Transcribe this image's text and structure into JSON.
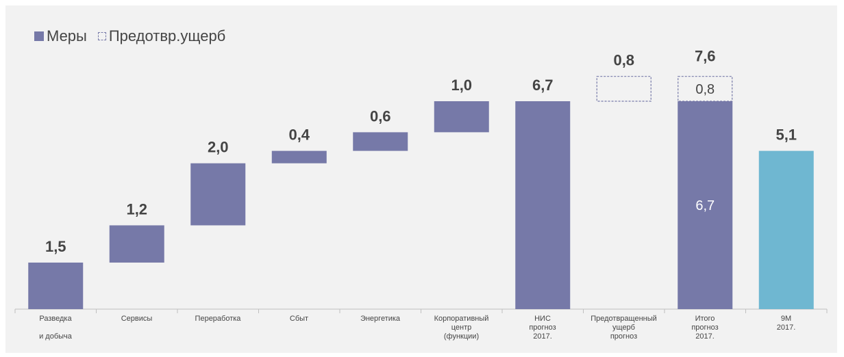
{
  "colors": {
    "mery": "#7679a8",
    "total": "#6fb7d1",
    "dashed": "#7679a8",
    "label": "#444444",
    "inner_label": "#ffffff"
  },
  "legend": [
    {
      "label": "Меры",
      "style": "solid"
    },
    {
      "label": "Предотвр.ущерб",
      "style": "dashed"
    }
  ],
  "chart_data": {
    "type": "bar",
    "subtype": "waterfall",
    "ylim": [
      0,
      8.0
    ],
    "grid": false,
    "legend_position": "top-left",
    "categories": [
      [
        "Разведка",
        "",
        "и добыча"
      ],
      [
        "Сервисы"
      ],
      [
        "Переработка"
      ],
      [
        "Сбыт"
      ],
      [
        "Энергетика"
      ],
      [
        "Корпоративный",
        "центр",
        "(функции)"
      ],
      [
        "НИС",
        "прогноз",
        "2017."
      ],
      [
        "Предотвращенный",
        "ущерб",
        "прогноз"
      ],
      [
        "Итого",
        "прогноз",
        "2017."
      ],
      [
        "9М",
        "2017."
      ]
    ],
    "bars": [
      {
        "type": "step",
        "start": 0,
        "end": 1.5,
        "label": "1,5",
        "style": "solid",
        "color": "mery"
      },
      {
        "type": "step",
        "start": 1.5,
        "end": 2.7,
        "label": "1,2",
        "style": "solid",
        "color": "mery"
      },
      {
        "type": "step",
        "start": 2.7,
        "end": 4.7,
        "label": "2,0",
        "style": "solid",
        "color": "mery"
      },
      {
        "type": "step",
        "start": 4.7,
        "end": 5.1,
        "label": "0,4",
        "style": "solid",
        "color": "mery"
      },
      {
        "type": "step",
        "start": 5.1,
        "end": 5.7,
        "label": "0,6",
        "style": "solid",
        "color": "mery"
      },
      {
        "type": "step",
        "start": 5.7,
        "end": 6.7,
        "label": "1,0",
        "style": "solid",
        "color": "mery"
      },
      {
        "type": "total",
        "start": 0,
        "end": 6.7,
        "label": "6,7",
        "style": "solid",
        "color": "mery"
      },
      {
        "type": "step",
        "start": 6.7,
        "end": 7.5,
        "label": "0,8",
        "style": "dashed",
        "color": "dashed"
      },
      {
        "type": "stack",
        "segments": [
          {
            "start": 0,
            "end": 6.7,
            "inner_label": "6,7",
            "style": "solid",
            "color": "mery"
          },
          {
            "start": 6.7,
            "end": 7.5,
            "inner_label": "0,8",
            "style": "dashed",
            "color": "dashed"
          }
        ],
        "label": "7,6"
      },
      {
        "type": "total",
        "start": 0,
        "end": 5.1,
        "label": "5,1",
        "style": "solid",
        "color": "total"
      }
    ]
  }
}
